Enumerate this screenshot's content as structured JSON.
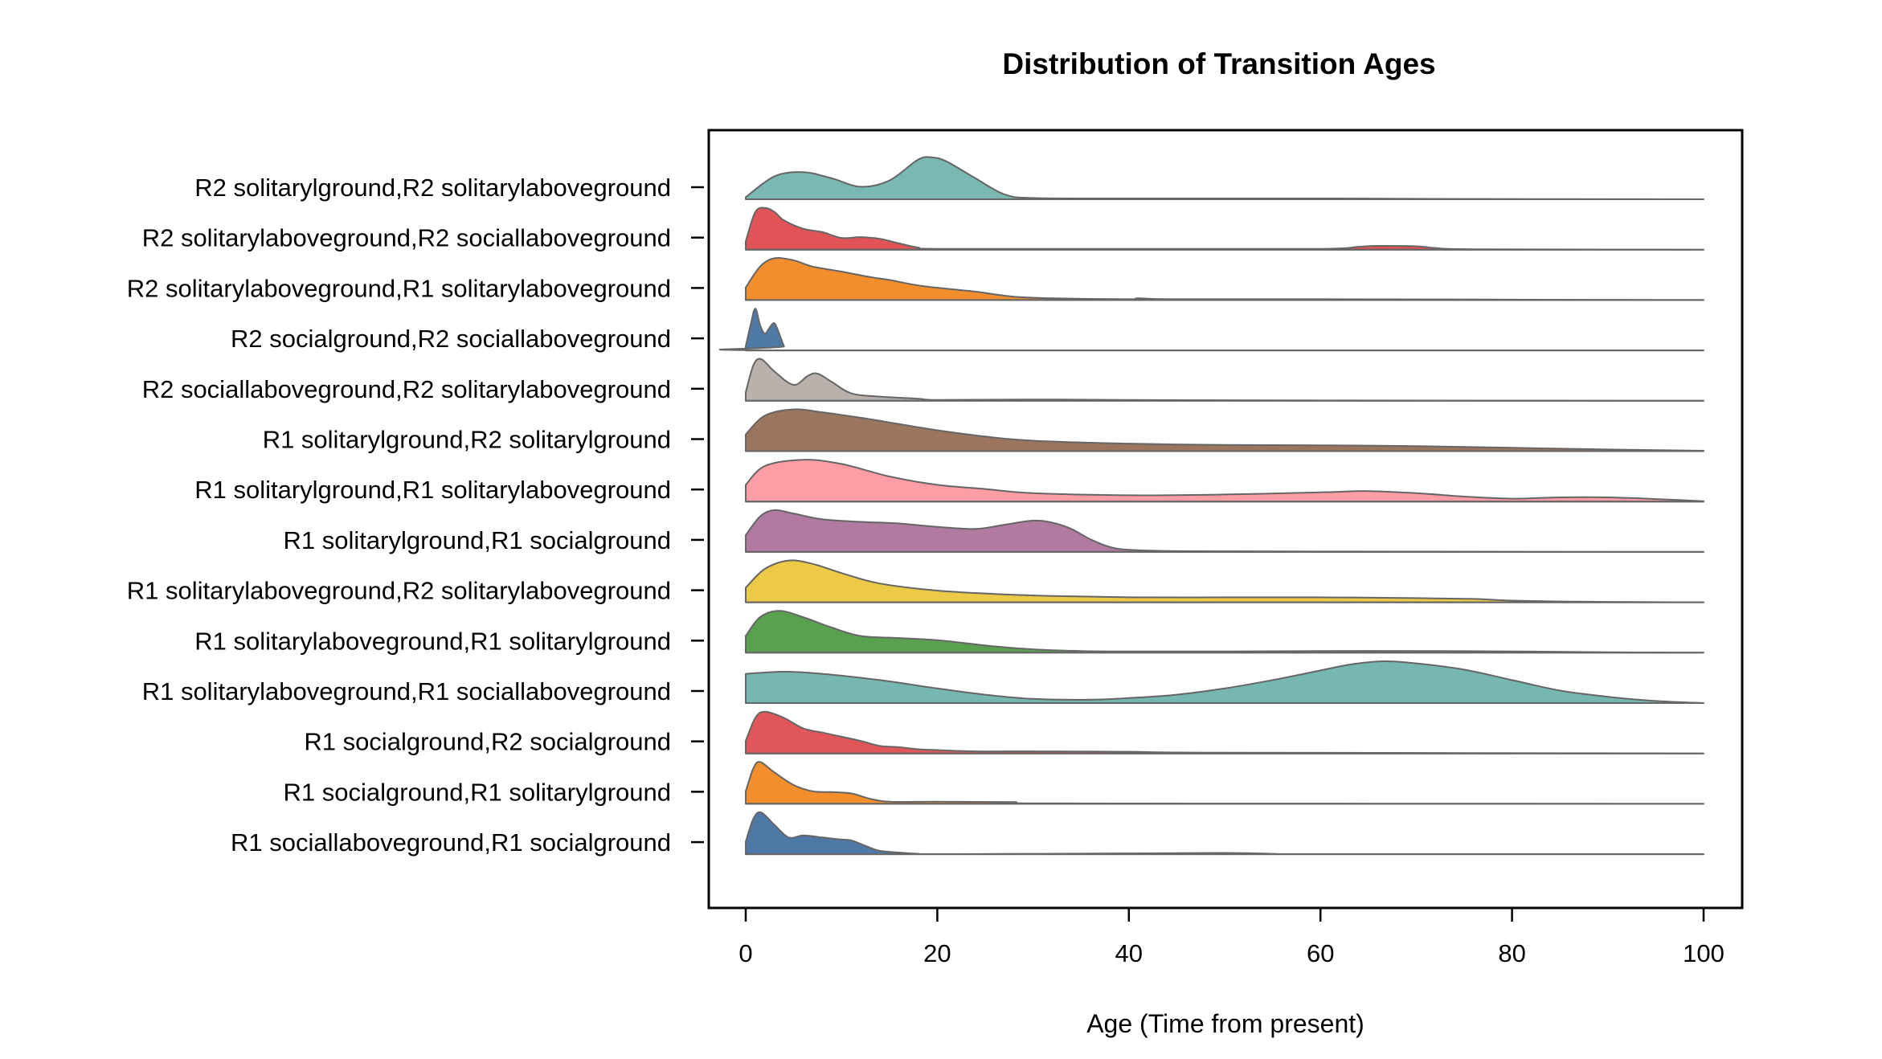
{
  "chart_data": {
    "type": "ridgeline density",
    "title": "Distribution of Transition Ages",
    "xlabel": "Age (Time from present)",
    "ylabel": "",
    "xlim": [
      -4.8,
      103
    ],
    "x_ticks": [
      0,
      20,
      40,
      60,
      80,
      100
    ],
    "grid": false,
    "legend": "none",
    "outline_color": "#666666",
    "series": [
      {
        "name": "R2 solitarylground,R2 solitarylaboveground",
        "color": "#7ab8b4",
        "x": [
          0,
          3,
          6,
          9,
          12,
          15,
          18,
          19.5,
          21,
          24,
          27,
          30,
          40,
          60,
          72,
          100
        ],
        "density": [
          0.05,
          0.55,
          0.65,
          0.5,
          0.3,
          0.45,
          0.95,
          1.0,
          0.9,
          0.5,
          0.12,
          0.03,
          0.02,
          0.02,
          0.01,
          0
        ]
      },
      {
        "name": "R2 solitarylaboveground,R2 sociallaboveground",
        "color": "#e05458",
        "x": [
          0,
          1,
          2,
          3,
          4,
          6,
          8,
          10,
          12,
          14,
          16,
          18,
          20,
          40,
          60,
          64,
          66,
          70,
          72,
          76,
          100
        ],
        "density": [
          0.2,
          0.9,
          1.0,
          0.9,
          0.7,
          0.5,
          0.42,
          0.28,
          0.3,
          0.26,
          0.15,
          0.05,
          0.02,
          0.02,
          0.02,
          0.07,
          0.09,
          0.08,
          0.04,
          0.01,
          0
        ]
      },
      {
        "name": "R2 solitarylaboveground,R1 solitarylaboveground",
        "color": "#f28e2c",
        "x": [
          0,
          1.5,
          3,
          5,
          7,
          10,
          13,
          15,
          18,
          21,
          24,
          28,
          32,
          40,
          41,
          45,
          60,
          80,
          100
        ],
        "density": [
          0.3,
          0.8,
          1.0,
          0.95,
          0.8,
          0.68,
          0.55,
          0.48,
          0.35,
          0.27,
          0.2,
          0.08,
          0.04,
          0.02,
          0.04,
          0.02,
          0.02,
          0.01,
          0
        ]
      },
      {
        "name": "R2 socialground,R2 sociallaboveground",
        "color": "#4e79a7",
        "x": [
          0,
          0.5,
          1,
          1.5,
          2,
          2.5,
          3,
          3.5,
          4,
          4.5,
          100
        ],
        "density": [
          0.1,
          0.6,
          1.0,
          0.6,
          0.4,
          0.55,
          0.65,
          0.4,
          0.1,
          0,
          0
        ]
      },
      {
        "name": "R2 sociallaboveground,R2 solitarylaboveground",
        "color": "#bab0ac",
        "x": [
          0,
          0.8,
          1.6,
          3,
          5,
          6.5,
          7.5,
          9,
          11,
          14,
          18,
          20,
          30,
          40,
          55,
          100
        ],
        "density": [
          0.2,
          0.85,
          1.0,
          0.7,
          0.38,
          0.6,
          0.65,
          0.45,
          0.18,
          0.1,
          0.05,
          0.02,
          0.03,
          0.02,
          0.01,
          0
        ]
      },
      {
        "name": "R1 solitarylground,R2 solitarylground",
        "color": "#9c755f",
        "x": [
          0,
          2,
          5,
          8,
          12,
          16,
          20,
          25,
          30,
          40,
          50,
          60,
          70,
          80,
          90,
          100
        ],
        "density": [
          0.4,
          0.85,
          1.0,
          0.93,
          0.8,
          0.65,
          0.5,
          0.35,
          0.25,
          0.18,
          0.15,
          0.14,
          0.12,
          0.08,
          0.04,
          0.01
        ]
      },
      {
        "name": "R1 solitarylground,R1 solitarylaboveground",
        "color": "#ff9da7",
        "x": [
          0,
          2,
          6,
          10,
          15,
          20,
          25,
          30,
          40,
          50,
          60,
          65,
          70,
          75,
          80,
          85,
          90,
          95,
          100
        ],
        "density": [
          0.4,
          0.85,
          1.0,
          0.9,
          0.6,
          0.4,
          0.3,
          0.2,
          0.15,
          0.17,
          0.22,
          0.25,
          0.2,
          0.12,
          0.07,
          0.1,
          0.1,
          0.06,
          0.01
        ]
      },
      {
        "name": "R1 solitarylground,R1 socialground",
        "color": "#b07aa1",
        "x": [
          0,
          1.5,
          3,
          5,
          8,
          12,
          16,
          20,
          24,
          27,
          30,
          32,
          34,
          36,
          38,
          40,
          45,
          60,
          100
        ],
        "density": [
          0.4,
          0.85,
          1.0,
          0.92,
          0.78,
          0.72,
          0.68,
          0.6,
          0.55,
          0.65,
          0.75,
          0.7,
          0.55,
          0.3,
          0.12,
          0.05,
          0.02,
          0.01,
          0
        ]
      },
      {
        "name": "R1 solitarylaboveground,R2 solitarylaboveground",
        "color": "#edc948",
        "x": [
          0,
          2,
          4.5,
          7,
          10,
          14,
          20,
          26,
          32,
          40,
          50,
          60,
          70,
          76,
          80,
          85,
          90,
          100
        ],
        "density": [
          0.35,
          0.8,
          1.0,
          0.92,
          0.7,
          0.45,
          0.28,
          0.2,
          0.15,
          0.12,
          0.12,
          0.12,
          0.1,
          0.08,
          0.04,
          0.02,
          0.01,
          0
        ]
      },
      {
        "name": "R1 solitarylaboveground,R1 solitarylground",
        "color": "#59a14f",
        "x": [
          0,
          1.5,
          3.5,
          6,
          9,
          12,
          16,
          20,
          26,
          30,
          35,
          40,
          50,
          60,
          70,
          80,
          90,
          100
        ],
        "density": [
          0.4,
          0.85,
          1.0,
          0.85,
          0.6,
          0.4,
          0.35,
          0.3,
          0.15,
          0.08,
          0.04,
          0.03,
          0.03,
          0.04,
          0.04,
          0.03,
          0.01,
          0
        ]
      },
      {
        "name": "R1 solitarylaboveground,R1 sociallaboveground",
        "color": "#76b7b2",
        "x": [
          0,
          4,
          8,
          14,
          20,
          25,
          30,
          36,
          40,
          45,
          50,
          55,
          60,
          63,
          66.5,
          70,
          75,
          80,
          85,
          90,
          95,
          100
        ],
        "density": [
          0.7,
          0.75,
          0.7,
          0.55,
          0.35,
          0.2,
          0.1,
          0.08,
          0.12,
          0.2,
          0.35,
          0.55,
          0.78,
          0.92,
          1.0,
          0.95,
          0.8,
          0.55,
          0.3,
          0.15,
          0.05,
          0
        ]
      },
      {
        "name": "R1 socialground,R2 socialground",
        "color": "#e15759",
        "x": [
          0,
          1,
          2,
          4,
          6,
          8,
          10,
          12,
          14,
          16,
          18,
          20,
          24,
          30,
          40,
          50,
          100
        ],
        "density": [
          0.3,
          0.85,
          1.0,
          0.85,
          0.6,
          0.5,
          0.4,
          0.3,
          0.18,
          0.15,
          0.1,
          0.08,
          0.05,
          0.05,
          0.04,
          0.02,
          0
        ]
      },
      {
        "name": "R1 socialground,R1 solitarylground",
        "color": "#f28e2b",
        "x": [
          0,
          0.8,
          1.5,
          3,
          5,
          7,
          9,
          11,
          13,
          15,
          20,
          28,
          32,
          100
        ],
        "density": [
          0.3,
          0.85,
          1.0,
          0.75,
          0.45,
          0.3,
          0.28,
          0.25,
          0.12,
          0.05,
          0.05,
          0.04,
          0.01,
          0
        ]
      },
      {
        "name": "R1 sociallaboveground,R1 socialground",
        "color": "#4e79a7",
        "x": [
          0,
          0.8,
          1.6,
          3,
          4.5,
          6,
          8,
          10,
          11,
          12.5,
          14,
          16,
          18,
          20,
          40,
          50,
          55,
          60,
          100
        ],
        "density": [
          0.3,
          0.85,
          1.0,
          0.7,
          0.4,
          0.45,
          0.4,
          0.35,
          0.33,
          0.2,
          0.08,
          0.04,
          0.01,
          0,
          0.02,
          0.03,
          0.01,
          0,
          0
        ]
      }
    ]
  }
}
